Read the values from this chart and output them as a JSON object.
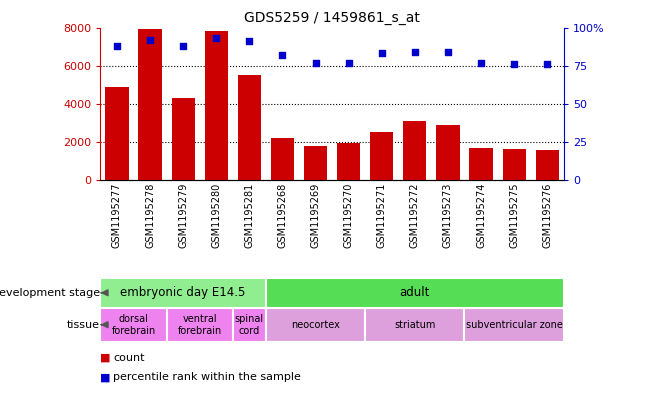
{
  "title": "GDS5259 / 1459861_s_at",
  "samples": [
    "GSM1195277",
    "GSM1195278",
    "GSM1195279",
    "GSM1195280",
    "GSM1195281",
    "GSM1195268",
    "GSM1195269",
    "GSM1195270",
    "GSM1195271",
    "GSM1195272",
    "GSM1195273",
    "GSM1195274",
    "GSM1195275",
    "GSM1195276"
  ],
  "counts": [
    4900,
    7900,
    4300,
    7800,
    5500,
    2200,
    1750,
    1950,
    2500,
    3100,
    2900,
    1650,
    1600,
    1550
  ],
  "percentiles": [
    88,
    92,
    88,
    93,
    91,
    82,
    77,
    77,
    83,
    84,
    84,
    77,
    76,
    76
  ],
  "bar_color": "#cc0000",
  "dot_color": "#0000cc",
  "ylim_left": [
    0,
    8000
  ],
  "ylim_right": [
    0,
    100
  ],
  "yticks_left": [
    0,
    2000,
    4000,
    6000,
    8000
  ],
  "yticks_right": [
    0,
    25,
    50,
    75,
    100
  ],
  "yticklabels_right": [
    "0",
    "25",
    "50",
    "75",
    "100%"
  ],
  "dev_stage_label": "development stage",
  "tissue_label": "tissue",
  "dev_stages": [
    {
      "label": "embryonic day E14.5",
      "start": 0,
      "end": 5,
      "color": "#90ee90"
    },
    {
      "label": "adult",
      "start": 5,
      "end": 14,
      "color": "#55dd55"
    }
  ],
  "tissues": [
    {
      "label": "dorsal\nforebrain",
      "start": 0,
      "end": 2,
      "color": "#ee82ee"
    },
    {
      "label": "ventral\nforebrain",
      "start": 2,
      "end": 4,
      "color": "#ee82ee"
    },
    {
      "label": "spinal\ncord",
      "start": 4,
      "end": 5,
      "color": "#ee82ee"
    },
    {
      "label": "neocortex",
      "start": 5,
      "end": 8,
      "color": "#dda0dd"
    },
    {
      "label": "striatum",
      "start": 8,
      "end": 11,
      "color": "#dda0dd"
    },
    {
      "label": "subventricular zone",
      "start": 11,
      "end": 14,
      "color": "#dda0dd"
    }
  ],
  "legend_count_color": "#cc0000",
  "legend_pct_color": "#0000cc",
  "n": 14
}
